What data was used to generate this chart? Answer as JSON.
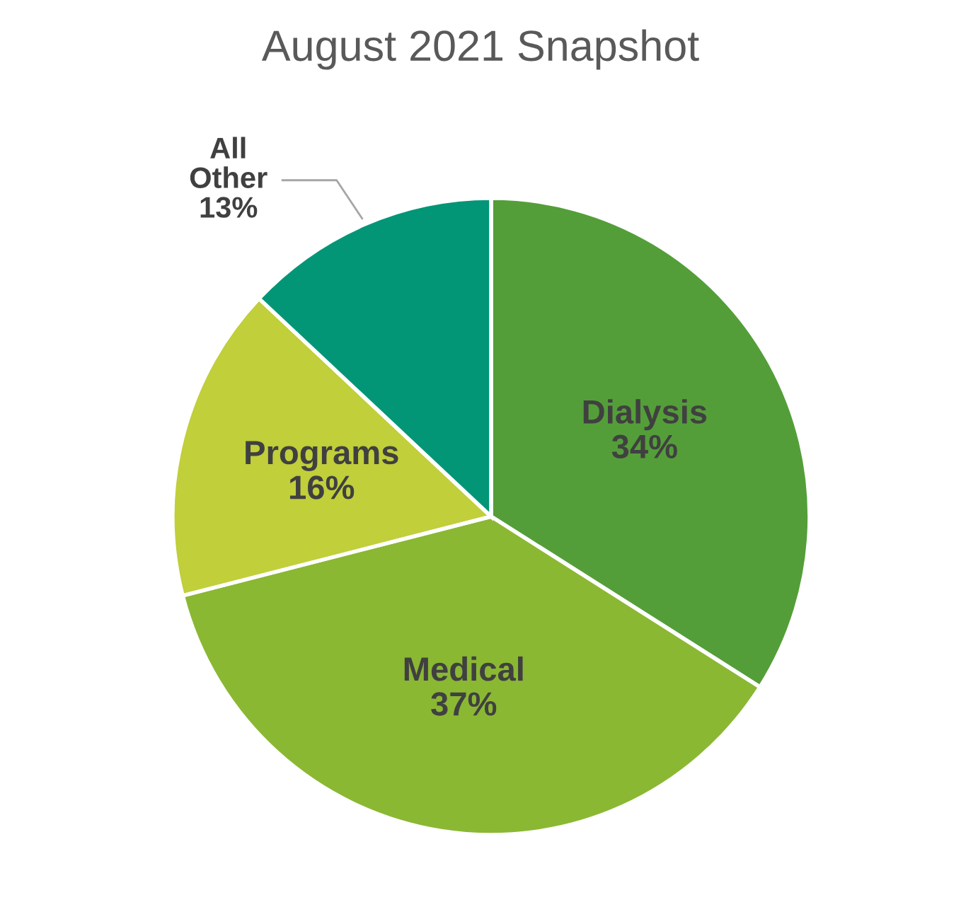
{
  "chart_data": {
    "type": "pie",
    "title": "August 2021 Snapshot",
    "categories": [
      "Dialysis",
      "Medical",
      "Programs",
      "All Other"
    ],
    "values": [
      34,
      37,
      16,
      13
    ],
    "value_labels": [
      "34%",
      "37%",
      "16%",
      "13%"
    ],
    "colors": [
      "#549e39",
      "#8ab833",
      "#c0cf3a",
      "#029676"
    ]
  }
}
